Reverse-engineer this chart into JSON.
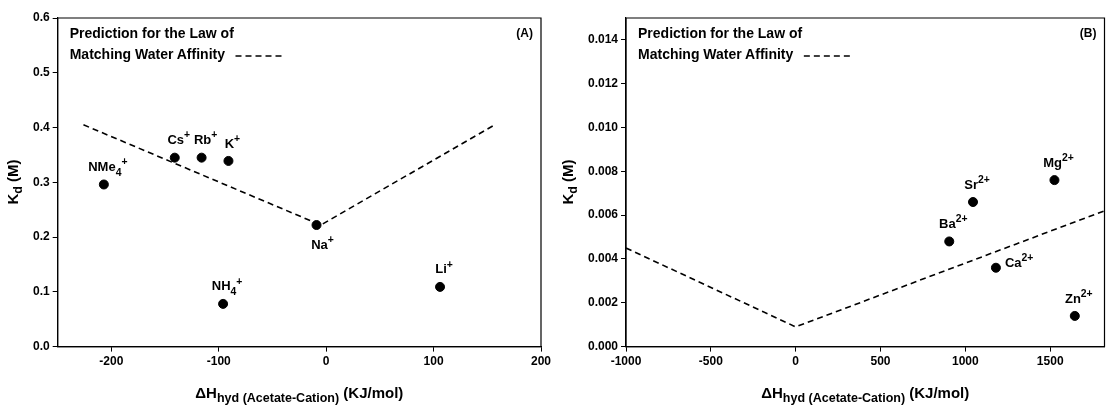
{
  "chart_data": [
    {
      "type": "scatter",
      "xlabel": "ΔH$_{hyd (Acetate-Cation)}$ (KJ/mol)",
      "ylabel": "K$_{d}$ (M)",
      "xlim": [
        -250,
        200
      ],
      "ylim": [
        0,
        0.6
      ],
      "xticks": [
        -200,
        -100,
        0,
        100,
        200
      ],
      "yticks": [
        {
          "value": 0,
          "label": "0.0"
        },
        {
          "value": 0.1,
          "label": "0.1"
        },
        {
          "value": 0.2,
          "label": "0.2"
        },
        {
          "value": 0.3,
          "label": "0.3"
        },
        {
          "value": 0.4,
          "label": "0.4"
        },
        {
          "value": 0.5,
          "label": "0.5"
        },
        {
          "value": 0.6,
          "label": "0.6"
        }
      ],
      "grid": false,
      "legend": "top left",
      "marker": "circle",
      "series": [
        {
          "type": "scatter",
          "color": "#000000",
          "x": [
            -207,
            -141,
            -116,
            -91,
            -9,
            -96,
            106
          ],
          "values": [
            0.296,
            0.345,
            0.345,
            0.339,
            0.222,
            0.078,
            0.109
          ]
        },
        {
          "type": "line",
          "name": "Prediction for the Law of Matching Water Affinity",
          "color": "#000000",
          "line_style": "dashed",
          "marker": "none",
          "x": [
            -226,
            -5,
            157
          ],
          "values": [
            0.405,
            0.222,
            0.405
          ]
        }
      ],
      "annotations": [
        "(A)",
        {
          "text": "NMe$_{4}$$^{+}$",
          "x": -207,
          "y": 0.296
        },
        {
          "text": "Cs$^{+}$",
          "x": -141,
          "y": 0.345
        },
        {
          "text": "Rb$^{+}$",
          "x": -116,
          "y": 0.345
        },
        {
          "text": "K$^{+}$",
          "x": -91,
          "y": 0.339
        },
        {
          "text": "Na$^{+}$",
          "x": -9,
          "y": 0.222
        },
        {
          "text": "NH$_{4}$$^{+}$",
          "x": -96,
          "y": 0.078
        },
        {
          "text": "Li$^{+}$",
          "x": 106,
          "y": 0.109
        }
      ]
    },
    {
      "type": "scatter",
      "xlabel": "ΔH$_{hyd (Acetate-Cation)}$ (KJ/mol)",
      "ylabel": "K$_{d}$ (M)",
      "xlim": [
        -1000,
        1820
      ],
      "ylim": [
        0,
        0.015
      ],
      "xticks": [
        -1000,
        -500,
        0,
        500,
        1000,
        1500
      ],
      "yticks": [
        {
          "value": 0,
          "label": "0.000"
        },
        {
          "value": 0.002,
          "label": "0.002"
        },
        {
          "value": 0.004,
          "label": "0.004"
        },
        {
          "value": 0.006,
          "label": "0.006"
        },
        {
          "value": 0.008,
          "label": "0.008"
        },
        {
          "value": 0.01,
          "label": "0.010"
        },
        {
          "value": 0.012,
          "label": "0.012"
        },
        {
          "value": 0.014,
          "label": "0.014"
        }
      ],
      "grid": false,
      "legend": "top left",
      "marker": "circle",
      "series": [
        {
          "type": "scatter",
          "color": "#000000",
          "x": [
            905,
            1045,
            1180,
            1525,
            1645
          ],
          "values": [
            0.0048,
            0.0066,
            0.0036,
            0.0076,
            0.0014
          ]
        },
        {
          "type": "line",
          "name": "Prediction for the Law of Matching Water Affinity",
          "color": "#000000",
          "line_style": "dashed",
          "marker": "none",
          "x": [
            -1000,
            0,
            1820
          ],
          "values": [
            0.0045,
            0.0009,
            0.0062
          ]
        }
      ],
      "annotations": [
        "(B)",
        {
          "text": "Ba$^{2+}$",
          "x": 905,
          "y": 0.0048
        },
        {
          "text": "Sr$^{2+}$",
          "x": 1045,
          "y": 0.0066
        },
        {
          "text": "Ca$^{2+}$",
          "x": 1180,
          "y": 0.0036
        },
        {
          "text": "Mg$^{2+}$",
          "x": 1525,
          "y": 0.0076
        },
        {
          "text": "Zn$^{2+}$",
          "x": 1645,
          "y": 0.0014
        }
      ]
    }
  ]
}
